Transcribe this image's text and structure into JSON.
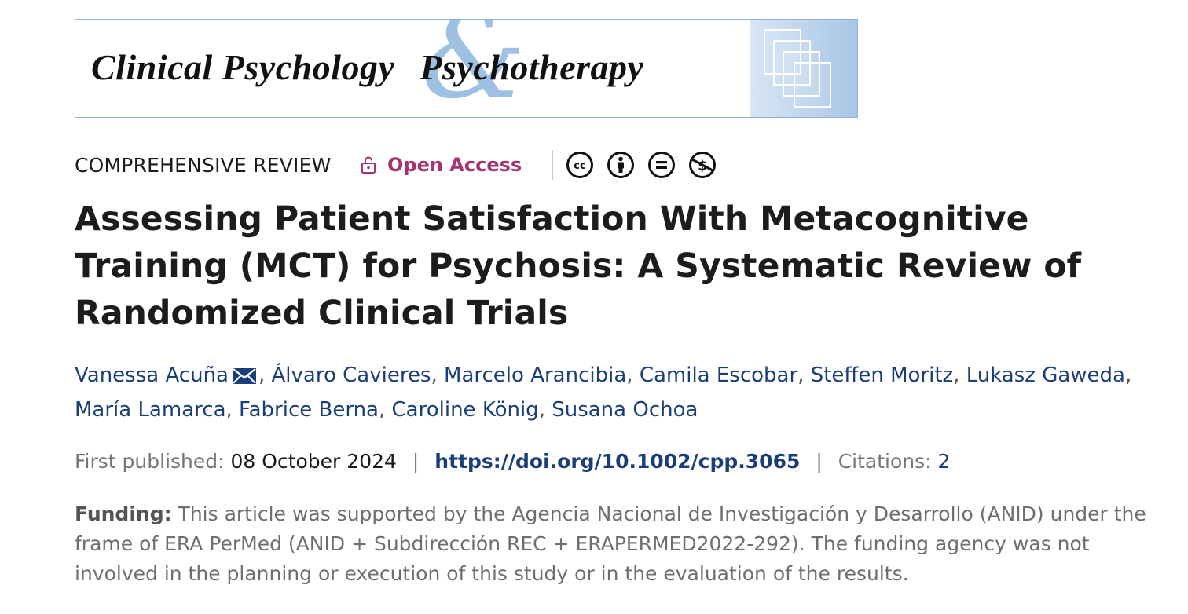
{
  "journal": {
    "title_left": "Clinical Psychology",
    "ampersand": "&",
    "title_right": "Psychotherapy"
  },
  "article": {
    "type": "COMPREHENSIVE REVIEW",
    "open_access_label": "Open Access",
    "license_icons": [
      "cc-icon",
      "by-attribution-icon",
      "no-derivatives-icon",
      "non-commercial-icon"
    ],
    "title": "Assessing Patient Satisfaction With Metacognitive Training (MCT) for Psychosis: A Systematic Review of Randomized Clinical Trials",
    "authors": [
      "Vanessa Acuña",
      "Álvaro Cavieres",
      "Marcelo Arancibia",
      "Camila Escobar",
      "Steffen Moritz",
      "Lukasz Gaweda",
      "María Lamarca",
      "Fabrice Berna",
      "Caroline König",
      "Susana Ochoa"
    ],
    "separator": ", ",
    "first_published_label": "First published:",
    "first_published_date": "08 October 2024",
    "bar": "|",
    "doi": "https://doi.org/10.1002/cpp.3065",
    "citations_label": "Citations:",
    "citations_count": "2",
    "funding_label": "Funding:",
    "funding_text": "This article was supported by the Agencia Nacional de Investigación y Desarrollo (ANID) under the frame of ERA PerMed (ANID + Subdirección REC + ERAPERMED2022-292). The funding agency was not involved in the planning or execution of this study or in the evaluation of the results."
  },
  "colors": {
    "link": "#1a3f78",
    "open_access": "#a6336f",
    "muted": "#757575",
    "banner_border": "#8fb1d8",
    "banner_accent": "#9ec0e2"
  }
}
